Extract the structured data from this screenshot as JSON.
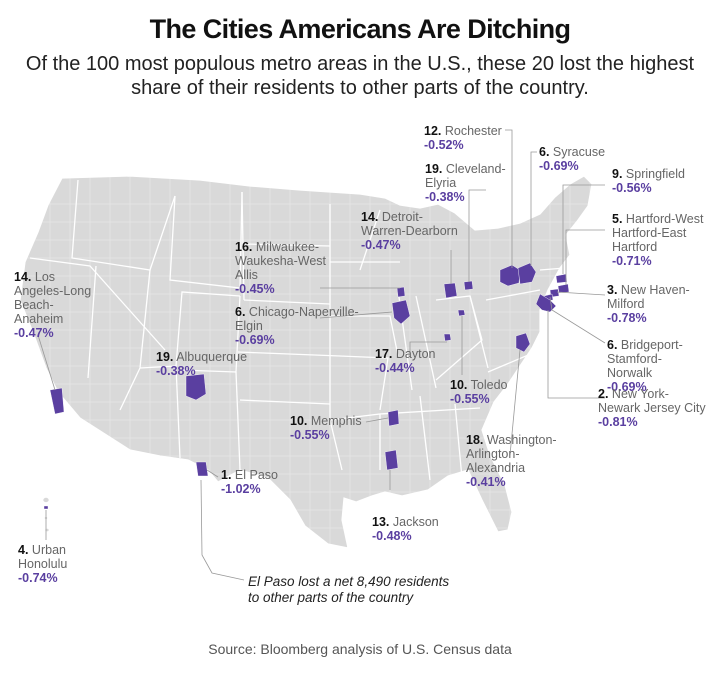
{
  "title": "The Cities Americans Are Ditching",
  "subtitle": "Of the 100 most populous metro areas in the U.S., these 20 lost the highest share of their residents to other parts of the country.",
  "source": "Source: Bloomberg analysis of U.S. Census data",
  "annotation": "El Paso lost a net 8,490 residents to other parts of the country",
  "colors": {
    "highlight": "#5a3fa0",
    "land": "#d9d9d9",
    "border": "#ffffff"
  },
  "metros": [
    {
      "id": "rochester",
      "rank": "12.",
      "name": "Rochester",
      "pct": "-0.52%"
    },
    {
      "id": "syracuse",
      "rank": "6.",
      "name": "Syracuse",
      "pct": "-0.69%"
    },
    {
      "id": "cleveland",
      "rank": "19.",
      "name": "Cleveland-Elyria",
      "pct": "-0.38%"
    },
    {
      "id": "springfield",
      "rank": "9.",
      "name": "Springfield",
      "pct": "-0.56%"
    },
    {
      "id": "detroit",
      "rank": "14.",
      "name": "Detroit-Warren-Dearborn",
      "pct": "-0.47%"
    },
    {
      "id": "hartford",
      "rank": "5.",
      "name": "Hartford-West Hartford-East Hartford",
      "pct": "-0.71%"
    },
    {
      "id": "milwaukee",
      "rank": "16.",
      "name": "Milwaukee-Waukesha-West Allis",
      "pct": "-0.45%"
    },
    {
      "id": "losangeles",
      "rank": "14.",
      "name": "Los Angeles-Long Beach-Anaheim",
      "pct": "-0.47%"
    },
    {
      "id": "newhaven",
      "rank": "3.",
      "name": "New Haven-Milford",
      "pct": "-0.78%"
    },
    {
      "id": "chicago",
      "rank": "6.",
      "name": "Chicago-Naperville-Elgin",
      "pct": "-0.69%"
    },
    {
      "id": "bridgeport",
      "rank": "6.",
      "name": "Bridgeport-Stamford-Norwalk",
      "pct": "-0.69%"
    },
    {
      "id": "albuquerque",
      "rank": "19.",
      "name": "Albuquerque",
      "pct": "-0.38%"
    },
    {
      "id": "dayton",
      "rank": "17.",
      "name": "Dayton",
      "pct": "-0.44%"
    },
    {
      "id": "toledo",
      "rank": "10.",
      "name": "Toledo",
      "pct": "-0.55%"
    },
    {
      "id": "newyork",
      "rank": "2.",
      "name": "New York-Newark Jersey City",
      "pct": "-0.81%"
    },
    {
      "id": "memphis",
      "rank": "10.",
      "name": "Memphis",
      "pct": "-0.55%"
    },
    {
      "id": "washington",
      "rank": "18.",
      "name": "Washington-Arlington-Alexandria",
      "pct": "-0.41%"
    },
    {
      "id": "elpaso",
      "rank": "1.",
      "name": "El Paso",
      "pct": "-1.02%"
    },
    {
      "id": "honolulu",
      "rank": "4.",
      "name": "Urban Honolulu",
      "pct": "-0.74%"
    },
    {
      "id": "jackson",
      "rank": "13.",
      "name": "Jackson",
      "pct": "-0.48%"
    }
  ]
}
